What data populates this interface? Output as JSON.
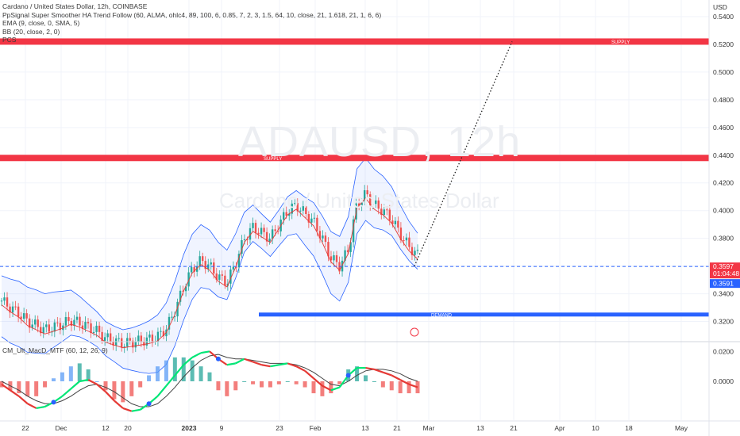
{
  "watermark": {
    "symbol": "ADAUSD, 12h",
    "name": "Cardano / United States Dollar"
  },
  "legend": {
    "title": "Cardano / United States Dollar, 12h, COINBASE",
    "indicators": [
      "PpSignal Super Smoother HA Trend Follow (60, ALMA, ohlc4, 89, 100, 6, 0.85, 7, 2, 3, 1.5, 64, 10, close, 21, 1.618, 21, 1, 6, 6)",
      "EMA (9, close, 0, SMA, 5)",
      "BB (20, close, 2, 0)",
      "PCS"
    ]
  },
  "macd_legend": "CM_Ult_MacD_MTF (60, 12, 26, 9)",
  "colors": {
    "supply": "#f23645",
    "demand": "#2962ff",
    "bb": "#2962ff",
    "bull": "#26a69a",
    "bear": "#ef5350",
    "ema": "#e53935",
    "price_line": "#2962ff"
  },
  "chart_data": {
    "type": "candlestick",
    "currency_label": "USD",
    "ylim": [
      0.306,
      0.552
    ],
    "y_ticks": [
      "0.5400",
      "0.5200",
      "0.5000",
      "0.4800",
      "0.4600",
      "0.4400",
      "0.4200",
      "0.4000",
      "0.3800",
      "0.3600",
      "0.3400",
      "0.3200"
    ],
    "x_ticks": [
      "22",
      "Dec",
      "12",
      "20",
      "2023",
      "9",
      "23",
      "Feb",
      "13",
      "21",
      "Mar",
      "13",
      "21",
      "Apr",
      "10",
      "18",
      "May"
    ],
    "zones": [
      {
        "label": "SUPPLY",
        "value": 0.522
      },
      {
        "label": "SUPPLY",
        "value": 0.438
      },
      {
        "label": "DEMAND",
        "value": 0.325
      }
    ],
    "current_price": {
      "value": "0.3597",
      "countdown": "01:04:48"
    },
    "second_price": {
      "value": "0.3591"
    },
    "projection": {
      "from": 0.36,
      "to": 0.522
    },
    "price_series": [
      0.335,
      0.33,
      0.326,
      0.32,
      0.317,
      0.314,
      0.316,
      0.318,
      0.321,
      0.319,
      0.316,
      0.313,
      0.308,
      0.306,
      0.304,
      0.305,
      0.306,
      0.307,
      0.309,
      0.315,
      0.328,
      0.345,
      0.358,
      0.364,
      0.36,
      0.352,
      0.348,
      0.362,
      0.38,
      0.388,
      0.384,
      0.38,
      0.39,
      0.4,
      0.404,
      0.398,
      0.392,
      0.38,
      0.366,
      0.36,
      0.372,
      0.405,
      0.412,
      0.404,
      0.4,
      0.394,
      0.383,
      0.374,
      0.368
    ],
    "macd": {
      "ylim": [
        -0.026,
        0.026
      ],
      "y_ticks": [
        "0.0200",
        "0.0000"
      ],
      "macd_line": [
        -0.002,
        -0.006,
        -0.01,
        -0.015,
        -0.018,
        -0.017,
        -0.014,
        -0.01,
        -0.005,
        0.0,
        0.001,
        -0.002,
        -0.007,
        -0.013,
        -0.018,
        -0.02,
        -0.019,
        -0.015,
        -0.01,
        -0.003,
        0.004,
        0.011,
        0.016,
        0.019,
        0.02,
        0.015,
        0.011,
        0.012,
        0.015,
        0.013,
        0.011,
        0.01,
        0.011,
        0.012,
        0.01,
        0.007,
        0.002,
        -0.003,
        -0.006,
        -0.004,
        0.004,
        0.009,
        0.009,
        0.008,
        0.006,
        0.004,
        0.001,
        -0.002,
        -0.004
      ],
      "signal_line": [
        0.0,
        -0.003,
        -0.006,
        -0.01,
        -0.013,
        -0.015,
        -0.015,
        -0.013,
        -0.01,
        -0.006,
        -0.003,
        -0.002,
        -0.004,
        -0.007,
        -0.011,
        -0.015,
        -0.017,
        -0.017,
        -0.015,
        -0.01,
        -0.004,
        0.003,
        0.009,
        0.014,
        0.017,
        0.018,
        0.016,
        0.015,
        0.015,
        0.014,
        0.013,
        0.012,
        0.012,
        0.012,
        0.011,
        0.009,
        0.006,
        0.002,
        -0.002,
        -0.003,
        0.0,
        0.004,
        0.007,
        0.008,
        0.008,
        0.007,
        0.005,
        0.002,
        0.0
      ]
    }
  }
}
